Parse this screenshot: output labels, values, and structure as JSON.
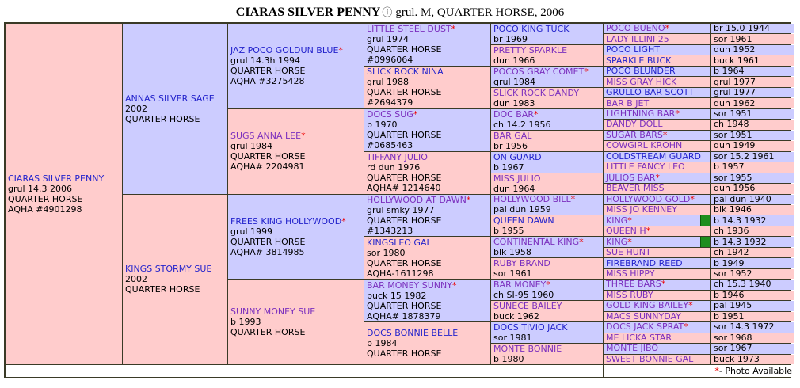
{
  "title": {
    "name": "CIARAS SILVER PENNY",
    "icon": "ⓘ",
    "suffix": "grul. M, QUARTER HORSE, 2006"
  },
  "legend": {
    "star": "*",
    "text": " - Photo Available"
  },
  "colors": {
    "sire_bg": "#ccccff",
    "dam_bg": "#ffcccc",
    "link_blue": "#2323cc",
    "link_visited": "#7b2fbe",
    "asterisk_red": "#ee0000",
    "grid_border": "#3a3a26",
    "photo_chip_green": "#1e8e1e"
  },
  "cells": [
    {
      "col": 1,
      "row": 1,
      "span": 32,
      "side": "d",
      "name": "CIARAS SILVER PENNY",
      "star": false,
      "visited": false,
      "details": [
        "grul 14.3 2006",
        "QUARTER HORSE",
        "AQHA #4901298"
      ]
    },
    {
      "col": 2,
      "row": 1,
      "span": 16,
      "side": "s",
      "name": "ANNAS SILVER SAGE",
      "star": false,
      "visited": false,
      "details": [
        "2002",
        "QUARTER HORSE"
      ]
    },
    {
      "col": 2,
      "row": 17,
      "span": 16,
      "side": "d",
      "name": "KINGS STORMY SUE",
      "star": false,
      "visited": false,
      "details": [
        "2002",
        "QUARTER HORSE"
      ]
    },
    {
      "col": 3,
      "row": 1,
      "span": 8,
      "side": "s",
      "name": "JAZ POCO GOLDUN BLUE",
      "star": true,
      "visited": false,
      "details": [
        "grul 14.3h 1994",
        "QUARTER HORSE",
        "AQHA #3275428"
      ]
    },
    {
      "col": 3,
      "row": 9,
      "span": 8,
      "side": "d",
      "name": "SUGS ANNA LEE",
      "star": true,
      "visited": true,
      "details": [
        "grul 1984",
        "QUARTER HORSE",
        "AQHA# 2204981"
      ]
    },
    {
      "col": 3,
      "row": 17,
      "span": 8,
      "side": "s",
      "name": "FREES KING HOLLYWOOD",
      "star": true,
      "visited": false,
      "details": [
        "grul 1999",
        "QUARTER HORSE",
        "AQHA# 3814985"
      ]
    },
    {
      "col": 3,
      "row": 25,
      "span": 8,
      "side": "d",
      "name": "SUNNY MONEY SUE",
      "star": false,
      "visited": true,
      "details": [
        "b 1993",
        "QUARTER HORSE"
      ]
    },
    {
      "col": 4,
      "row": 1,
      "span": 4,
      "side": "s",
      "name": "LITTLE STEEL DUST",
      "star": true,
      "visited": true,
      "details": [
        "grul 1974",
        "QUARTER HORSE",
        "#0996064"
      ]
    },
    {
      "col": 4,
      "row": 5,
      "span": 4,
      "side": "d",
      "name": "SLICK ROCK NINA",
      "star": false,
      "visited": false,
      "details": [
        "grul 1988",
        "QUARTER HORSE",
        "#2694379"
      ]
    },
    {
      "col": 4,
      "row": 9,
      "span": 4,
      "side": "s",
      "name": "DOCS SUG",
      "star": true,
      "visited": true,
      "details": [
        "b 1970",
        "QUARTER HORSE",
        "#0685463"
      ]
    },
    {
      "col": 4,
      "row": 13,
      "span": 4,
      "side": "d",
      "name": "TIFFANY JULIO",
      "star": false,
      "visited": true,
      "details": [
        "rd dun 1976",
        "QUARTER HORSE",
        "AQHA# 1214640"
      ]
    },
    {
      "col": 4,
      "row": 17,
      "span": 4,
      "side": "s",
      "name": "HOLLYWOOD AT DAWN",
      "star": true,
      "visited": true,
      "details": [
        "grul smky 1977",
        "QUARTER HORSE",
        "#1343213"
      ]
    },
    {
      "col": 4,
      "row": 21,
      "span": 4,
      "side": "d",
      "name": "KINGSLEO GAL",
      "star": false,
      "visited": false,
      "details": [
        "sor 1980",
        "QUARTER HORSE",
        "AQHA-1611298"
      ]
    },
    {
      "col": 4,
      "row": 25,
      "span": 4,
      "side": "s",
      "name": "BAR MONEY SUNNY",
      "star": true,
      "visited": true,
      "details": [
        "buck 15 1982",
        "QUARTER HORSE",
        "AQHA# 1878379"
      ]
    },
    {
      "col": 4,
      "row": 29,
      "span": 4,
      "side": "d",
      "name": "DOCS BONNIE BELLE",
      "star": false,
      "visited": false,
      "details": [
        "b 1984",
        "QUARTER HORSE"
      ]
    },
    {
      "col": 5,
      "row": 1,
      "span": 2,
      "side": "s",
      "name": "POCO KING TUCK",
      "star": false,
      "visited": false,
      "details": [
        "br 1969"
      ]
    },
    {
      "col": 5,
      "row": 3,
      "span": 2,
      "side": "d",
      "name": "PRETTY SPARKLE",
      "star": false,
      "visited": true,
      "details": [
        "dun 1966"
      ]
    },
    {
      "col": 5,
      "row": 5,
      "span": 2,
      "side": "s",
      "name": "POCOS GRAY COMET",
      "star": true,
      "visited": true,
      "details": [
        "grul 1984"
      ]
    },
    {
      "col": 5,
      "row": 7,
      "span": 2,
      "side": "d",
      "name": "SLICK ROCK DANDY",
      "star": false,
      "visited": true,
      "details": [
        "dun 1983"
      ]
    },
    {
      "col": 5,
      "row": 9,
      "span": 2,
      "side": "s",
      "name": "DOC BAR",
      "star": true,
      "visited": true,
      "details": [
        "ch 14.2 1956"
      ]
    },
    {
      "col": 5,
      "row": 11,
      "span": 2,
      "side": "d",
      "name": "BAR GAL",
      "star": false,
      "visited": true,
      "details": [
        "br 1956"
      ]
    },
    {
      "col": 5,
      "row": 13,
      "span": 2,
      "side": "s",
      "name": "ON GUARD",
      "star": false,
      "visited": false,
      "details": [
        "b 1967"
      ]
    },
    {
      "col": 5,
      "row": 15,
      "span": 2,
      "side": "d",
      "name": "MISS JULIO",
      "star": false,
      "visited": true,
      "details": [
        "dun 1964"
      ]
    },
    {
      "col": 5,
      "row": 17,
      "span": 2,
      "side": "s",
      "name": "HOLLYWOOD BILL",
      "star": true,
      "visited": true,
      "details": [
        "pal dun 1959"
      ]
    },
    {
      "col": 5,
      "row": 19,
      "span": 2,
      "side": "d",
      "name": "QUEEN DAWN",
      "star": false,
      "visited": false,
      "details": [
        "b 1955"
      ]
    },
    {
      "col": 5,
      "row": 21,
      "span": 2,
      "side": "s",
      "name": "CONTINENTAL KING",
      "star": true,
      "visited": true,
      "details": [
        "blk 1958"
      ]
    },
    {
      "col": 5,
      "row": 23,
      "span": 2,
      "side": "d",
      "name": "RUBY BRAND",
      "star": false,
      "visited": true,
      "details": [
        "sor 1961"
      ]
    },
    {
      "col": 5,
      "row": 25,
      "span": 2,
      "side": "s",
      "name": "BAR MONEY",
      "star": true,
      "visited": true,
      "details": [
        "ch SI-95 1960"
      ]
    },
    {
      "col": 5,
      "row": 27,
      "span": 2,
      "side": "d",
      "name": "SUNECE BAILEY",
      "star": false,
      "visited": true,
      "details": [
        "buck 1962"
      ]
    },
    {
      "col": 5,
      "row": 29,
      "span": 2,
      "side": "s",
      "name": "DOCS TIVIO JACK",
      "star": false,
      "visited": false,
      "details": [
        "sor 1981"
      ]
    },
    {
      "col": 5,
      "row": 31,
      "span": 2,
      "side": "d",
      "name": "MONTE BONNIE",
      "star": false,
      "visited": true,
      "details": [
        "b 1980"
      ]
    },
    {
      "col": 6,
      "row": 1,
      "span": 1,
      "side": "s",
      "name": "POCO BUENO",
      "star": true,
      "visited": true,
      "detail": "br 15.0 1944"
    },
    {
      "col": 6,
      "row": 2,
      "span": 1,
      "side": "d",
      "name": "LADY ILLINI 25",
      "star": false,
      "visited": true,
      "detail": "sor 1961"
    },
    {
      "col": 6,
      "row": 3,
      "span": 1,
      "side": "s",
      "name": "POCO LIGHT",
      "star": false,
      "visited": false,
      "detail": "dun 1952"
    },
    {
      "col": 6,
      "row": 4,
      "span": 1,
      "side": "d",
      "name": "SPARKLE BUCK",
      "star": false,
      "visited": false,
      "detail": "buck 1961"
    },
    {
      "col": 6,
      "row": 5,
      "span": 1,
      "side": "s",
      "name": "POCO BLUNDER",
      "star": false,
      "visited": false,
      "detail": "b 1964"
    },
    {
      "col": 6,
      "row": 6,
      "span": 1,
      "side": "d",
      "name": "MISS GRAY HICK",
      "star": false,
      "visited": true,
      "detail": "grul 1977"
    },
    {
      "col": 6,
      "row": 7,
      "span": 1,
      "side": "s",
      "name": "GRULLO BAR SCOTT",
      "star": false,
      "visited": false,
      "detail": "grul 1977"
    },
    {
      "col": 6,
      "row": 8,
      "span": 1,
      "side": "d",
      "name": "BAR B JET",
      "star": false,
      "visited": true,
      "detail": "dun 1962"
    },
    {
      "col": 6,
      "row": 9,
      "span": 1,
      "side": "s",
      "name": "LIGHTNING BAR",
      "star": true,
      "visited": true,
      "detail": "sor 1951"
    },
    {
      "col": 6,
      "row": 10,
      "span": 1,
      "side": "d",
      "name": "DANDY DOLL",
      "star": false,
      "visited": true,
      "detail": "ch 1948"
    },
    {
      "col": 6,
      "row": 11,
      "span": 1,
      "side": "s",
      "name": "SUGAR BARS",
      "star": true,
      "visited": true,
      "detail": "sor 1951"
    },
    {
      "col": 6,
      "row": 12,
      "span": 1,
      "side": "d",
      "name": "COWGIRL KROHN",
      "star": false,
      "visited": true,
      "detail": "dun 1949"
    },
    {
      "col": 6,
      "row": 13,
      "span": 1,
      "side": "s",
      "name": "COLDSTREAM GUARD",
      "star": false,
      "visited": false,
      "detail": "sor 15.2 1961"
    },
    {
      "col": 6,
      "row": 14,
      "span": 1,
      "side": "d",
      "name": "LITTLE FANCY LEO",
      "star": false,
      "visited": true,
      "detail": "b 1957"
    },
    {
      "col": 6,
      "row": 15,
      "span": 1,
      "side": "s",
      "name": "JULIOS BAR",
      "star": true,
      "visited": true,
      "detail": "sor 1955"
    },
    {
      "col": 6,
      "row": 16,
      "span": 1,
      "side": "d",
      "name": "BEAVER MISS",
      "star": false,
      "visited": true,
      "detail": "dun 1956"
    },
    {
      "col": 6,
      "row": 17,
      "span": 1,
      "side": "s",
      "name": "HOLLYWOOD GOLD",
      "star": true,
      "visited": true,
      "detail": "pal dun 1940"
    },
    {
      "col": 6,
      "row": 18,
      "span": 1,
      "side": "d",
      "name": "MISS JO KENNEY",
      "star": false,
      "visited": true,
      "detail": "blk 1946"
    },
    {
      "col": 6,
      "row": 19,
      "span": 1,
      "side": "s",
      "name": "KING",
      "star": true,
      "visited": true,
      "detail": "b 14.3 1932",
      "photo": true
    },
    {
      "col": 6,
      "row": 20,
      "span": 1,
      "side": "d",
      "name": "QUEEN H",
      "star": true,
      "visited": true,
      "detail": "ch 1936"
    },
    {
      "col": 6,
      "row": 21,
      "span": 1,
      "side": "s",
      "name": "KING",
      "star": true,
      "visited": true,
      "detail": "b 14.3 1932",
      "photo": true
    },
    {
      "col": 6,
      "row": 22,
      "span": 1,
      "side": "d",
      "name": "SUE HUNT",
      "star": false,
      "visited": true,
      "detail": "ch 1942"
    },
    {
      "col": 6,
      "row": 23,
      "span": 1,
      "side": "s",
      "name": "FIREBRAND REED",
      "star": false,
      "visited": false,
      "detail": "b 1949"
    },
    {
      "col": 6,
      "row": 24,
      "span": 1,
      "side": "d",
      "name": "MISS HIPPY",
      "star": false,
      "visited": true,
      "detail": "sor 1952"
    },
    {
      "col": 6,
      "row": 25,
      "span": 1,
      "side": "s",
      "name": "THREE BARS",
      "star": true,
      "visited": true,
      "detail": "ch 15.3 1940"
    },
    {
      "col": 6,
      "row": 26,
      "span": 1,
      "side": "d",
      "name": "MISS RUBY",
      "star": false,
      "visited": true,
      "detail": "b 1946"
    },
    {
      "col": 6,
      "row": 27,
      "span": 1,
      "side": "s",
      "name": "GOLD KING BAILEY",
      "star": true,
      "visited": true,
      "detail": "pal 1945"
    },
    {
      "col": 6,
      "row": 28,
      "span": 1,
      "side": "d",
      "name": "MACS SUNNYDAY",
      "star": false,
      "visited": true,
      "detail": "b 1951"
    },
    {
      "col": 6,
      "row": 29,
      "span": 1,
      "side": "s",
      "name": "DOCS JACK SPRAT",
      "star": true,
      "visited": true,
      "detail": "sor 14.3 1972"
    },
    {
      "col": 6,
      "row": 30,
      "span": 1,
      "side": "d",
      "name": "ME LICKA STAR",
      "star": false,
      "visited": true,
      "detail": "sor 1968"
    },
    {
      "col": 6,
      "row": 31,
      "span": 1,
      "side": "s",
      "name": "MONTE JIBO",
      "star": false,
      "visited": true,
      "detail": "sor 1967"
    },
    {
      "col": 6,
      "row": 32,
      "span": 1,
      "side": "d",
      "name": "SWEET BONNIE GAL",
      "star": false,
      "visited": true,
      "detail": "buck 1973"
    }
  ]
}
